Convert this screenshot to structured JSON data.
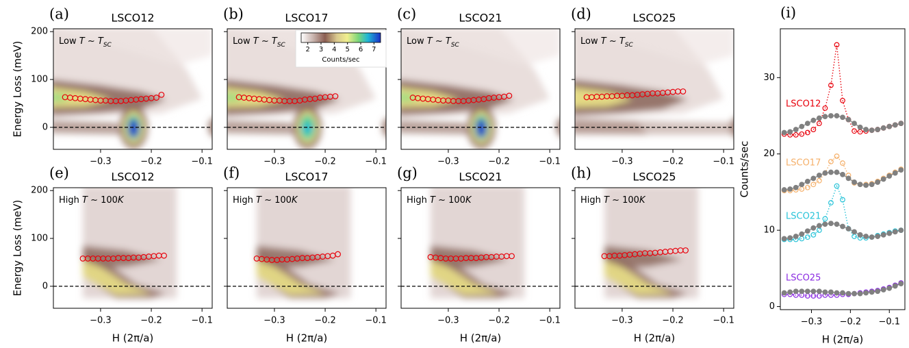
{
  "chart_data": [
    {
      "type": "scatter",
      "panel": "(a)",
      "title": "LSCO12",
      "annotation": [
        "Low ",
        "T",
        " ~ ",
        "T",
        "SC"
      ],
      "ylabel": "Energy Loss (meV)",
      "x": [
        -0.37,
        -0.36,
        -0.35,
        -0.34,
        -0.33,
        -0.32,
        -0.31,
        -0.3,
        -0.29,
        -0.28,
        -0.27,
        -0.26,
        -0.25,
        -0.24,
        -0.23,
        -0.22,
        -0.21,
        -0.2,
        -0.19,
        -0.18
      ],
      "values": [
        63,
        62,
        61,
        60,
        59,
        58,
        57,
        56,
        56,
        55,
        55,
        55,
        56,
        57,
        58,
        59,
        60,
        61,
        62,
        68
      ],
      "color": "#e8000b",
      "xlim": [
        -0.393,
        -0.08
      ],
      "ylim": [
        -46,
        206
      ],
      "xticks": [
        {
          "value": -0.3,
          "label": "−0.3"
        },
        {
          "value": -0.2,
          "label": "−0.2"
        },
        {
          "value": -0.1,
          "label": "−0.1"
        }
      ],
      "yticks": [
        0,
        100,
        200
      ],
      "reference_line": 0
    },
    {
      "type": "scatter",
      "panel": "(b)",
      "title": "LSCO17",
      "annotation": [
        "Low ",
        "T",
        " ~ ",
        "T",
        "SC"
      ],
      "x": [
        -0.37,
        -0.36,
        -0.35,
        -0.34,
        -0.33,
        -0.32,
        -0.31,
        -0.3,
        -0.29,
        -0.28,
        -0.27,
        -0.26,
        -0.25,
        -0.24,
        -0.23,
        -0.22,
        -0.21,
        -0.2,
        -0.19,
        -0.18
      ],
      "values": [
        63,
        62,
        61,
        60,
        59,
        58,
        57,
        56,
        56,
        55,
        55,
        55,
        56,
        58,
        59,
        60,
        62,
        63,
        64,
        65
      ],
      "color": "#e8000b",
      "xlim": [
        -0.393,
        -0.08
      ],
      "ylim": [
        -46,
        206
      ],
      "xticks": [
        {
          "value": -0.3,
          "label": "−0.3"
        },
        {
          "value": -0.2,
          "label": "−0.2"
        },
        {
          "value": -0.1,
          "label": "−0.1"
        }
      ],
      "yticks": [
        0,
        100,
        200
      ],
      "reference_line": 0,
      "colorbar": {
        "label": "Counts/sec",
        "lim": [
          1.5,
          7.5
        ],
        "ticks": [
          2,
          3,
          4,
          5,
          6,
          7
        ]
      }
    },
    {
      "type": "scatter",
      "panel": "(c)",
      "title": "LSCO21",
      "annotation": [
        "Low ",
        "T",
        " ~ ",
        "T",
        "SC"
      ],
      "x": [
        -0.37,
        -0.36,
        -0.35,
        -0.34,
        -0.33,
        -0.32,
        -0.31,
        -0.3,
        -0.29,
        -0.28,
        -0.27,
        -0.26,
        -0.25,
        -0.24,
        -0.23,
        -0.22,
        -0.21,
        -0.2,
        -0.19,
        -0.18
      ],
      "values": [
        62,
        61,
        60,
        59,
        58,
        57,
        56,
        56,
        55,
        55,
        55,
        56,
        57,
        58,
        59,
        61,
        62,
        63,
        64,
        66
      ],
      "color": "#e8000b",
      "xlim": [
        -0.393,
        -0.08
      ],
      "ylim": [
        -46,
        206
      ],
      "xticks": [
        {
          "value": -0.3,
          "label": "−0.3"
        },
        {
          "value": -0.2,
          "label": "−0.2"
        },
        {
          "value": -0.1,
          "label": "−0.1"
        }
      ],
      "yticks": [
        0,
        100,
        200
      ],
      "reference_line": 0
    },
    {
      "type": "scatter",
      "panel": "(d)",
      "title": "LSCO25",
      "annotation": [
        "Low ",
        "T",
        " ~ ",
        "T",
        "SC"
      ],
      "x": [
        -0.37,
        -0.36,
        -0.35,
        -0.34,
        -0.33,
        -0.32,
        -0.31,
        -0.3,
        -0.29,
        -0.28,
        -0.27,
        -0.26,
        -0.25,
        -0.24,
        -0.23,
        -0.22,
        -0.21,
        -0.2,
        -0.19,
        -0.18
      ],
      "values": [
        63,
        63,
        64,
        64,
        65,
        65,
        66,
        66,
        67,
        67,
        68,
        69,
        70,
        71,
        71,
        72,
        73,
        74,
        75,
        75
      ],
      "color": "#e8000b",
      "xlim": [
        -0.393,
        -0.08
      ],
      "ylim": [
        -46,
        206
      ],
      "xticks": [
        {
          "value": -0.3,
          "label": "−0.3"
        },
        {
          "value": -0.2,
          "label": "−0.2"
        },
        {
          "value": -0.1,
          "label": "−0.1"
        }
      ],
      "yticks": [
        0,
        100,
        200
      ],
      "reference_line": 0
    },
    {
      "type": "scatter",
      "panel": "(e)",
      "title": "LSCO12",
      "annotation": [
        "High ",
        "T",
        " ~ 100",
        "K"
      ],
      "ylabel": "Energy Loss (meV)",
      "xlabel": "H (2π/a)",
      "x": [
        -0.335,
        -0.325,
        -0.315,
        -0.305,
        -0.295,
        -0.285,
        -0.275,
        -0.265,
        -0.255,
        -0.245,
        -0.235,
        -0.225,
        -0.215,
        -0.205,
        -0.195,
        -0.185,
        -0.175
      ],
      "values": [
        58,
        58,
        58,
        58,
        58,
        58,
        58,
        59,
        59,
        59,
        60,
        60,
        61,
        62,
        63,
        64,
        64
      ],
      "color": "#e8000b",
      "xlim": [
        -0.393,
        -0.08
      ],
      "ylim": [
        -46,
        206
      ],
      "xticks": [
        {
          "value": -0.3,
          "label": "−0.3"
        },
        {
          "value": -0.2,
          "label": "−0.2"
        },
        {
          "value": -0.1,
          "label": "−0.1"
        }
      ],
      "yticks": [
        0,
        100,
        200
      ],
      "reference_line": 0
    },
    {
      "type": "scatter",
      "panel": "(f)",
      "title": "LSCO17",
      "annotation": [
        "High ",
        "T",
        " ~ 100",
        "K"
      ],
      "xlabel": "H (2π/a)",
      "x": [
        -0.335,
        -0.325,
        -0.315,
        -0.305,
        -0.295,
        -0.285,
        -0.275,
        -0.265,
        -0.255,
        -0.245,
        -0.235,
        -0.225,
        -0.215,
        -0.205,
        -0.195,
        -0.185,
        -0.175
      ],
      "values": [
        58,
        57,
        56,
        55,
        55,
        56,
        56,
        57,
        58,
        59,
        59,
        60,
        61,
        62,
        63,
        64,
        67
      ],
      "color": "#e8000b",
      "xlim": [
        -0.393,
        -0.08
      ],
      "ylim": [
        -46,
        206
      ],
      "xticks": [
        {
          "value": -0.3,
          "label": "−0.3"
        },
        {
          "value": -0.2,
          "label": "−0.2"
        },
        {
          "value": -0.1,
          "label": "−0.1"
        }
      ],
      "yticks": [
        0,
        100,
        200
      ],
      "reference_line": 0
    },
    {
      "type": "scatter",
      "panel": "(g)",
      "title": "LSCO21",
      "annotation": [
        "High ",
        "T",
        " ~ 100",
        "K"
      ],
      "xlabel": "H (2π/a)",
      "x": [
        -0.335,
        -0.325,
        -0.315,
        -0.305,
        -0.295,
        -0.285,
        -0.275,
        -0.265,
        -0.255,
        -0.245,
        -0.235,
        -0.225,
        -0.215,
        -0.205,
        -0.195,
        -0.185,
        -0.175
      ],
      "values": [
        61,
        60,
        59,
        58,
        58,
        58,
        58,
        59,
        59,
        59,
        60,
        61,
        61,
        62,
        62,
        63,
        63
      ],
      "color": "#e8000b",
      "xlim": [
        -0.393,
        -0.08
      ],
      "ylim": [
        -46,
        206
      ],
      "xticks": [
        {
          "value": -0.3,
          "label": "−0.3"
        },
        {
          "value": -0.2,
          "label": "−0.2"
        },
        {
          "value": -0.1,
          "label": "−0.1"
        }
      ],
      "yticks": [
        0,
        100,
        200
      ],
      "reference_line": 0
    },
    {
      "type": "scatter",
      "panel": "(h)",
      "title": "LSCO25",
      "annotation": [
        "High ",
        "T",
        " ~ 100",
        "K"
      ],
      "xlabel": "H (2π/a)",
      "x": [
        -0.335,
        -0.325,
        -0.315,
        -0.305,
        -0.295,
        -0.285,
        -0.275,
        -0.265,
        -0.255,
        -0.245,
        -0.235,
        -0.225,
        -0.215,
        -0.205,
        -0.195,
        -0.185,
        -0.175
      ],
      "values": [
        63,
        63,
        64,
        64,
        65,
        66,
        67,
        68,
        69,
        69,
        70,
        71,
        72,
        73,
        74,
        75,
        75
      ],
      "color": "#e8000b",
      "xlim": [
        -0.393,
        -0.08
      ],
      "ylim": [
        -46,
        206
      ],
      "xticks": [
        {
          "value": -0.3,
          "label": "−0.3"
        },
        {
          "value": -0.2,
          "label": "−0.2"
        },
        {
          "value": -0.1,
          "label": "−0.1"
        }
      ],
      "yticks": [
        0,
        100,
        200
      ],
      "reference_line": 0
    },
    {
      "type": "line",
      "panel": "(i)",
      "ylabel": "Counts/sec",
      "xlabel": "H (2π/a)",
      "x": [
        -0.37,
        -0.355,
        -0.34,
        -0.325,
        -0.31,
        -0.295,
        -0.28,
        -0.265,
        -0.25,
        -0.235,
        -0.22,
        -0.205,
        -0.19,
        -0.175,
        -0.16,
        -0.145,
        -0.13,
        -0.115,
        -0.1,
        -0.085,
        -0.07
      ],
      "series": [
        {
          "name": "LSCO12",
          "color": "#e8000b",
          "values": [
            22.6,
            22.5,
            22.5,
            22.6,
            22.8,
            23.2,
            24,
            26,
            29,
            34.3,
            27,
            24.5,
            23,
            22.9,
            23,
            23.1,
            23.2,
            23.4,
            23.6,
            23.8,
            24.0
          ]
        },
        {
          "color": "#808080",
          "values": [
            22.8,
            22.9,
            23.2,
            23.6,
            24,
            24.4,
            24.7,
            24.9,
            25,
            25,
            24.8,
            24.5,
            24,
            23.5,
            23.2,
            23.1,
            23.2,
            23.4,
            23.6,
            23.8,
            24.0
          ]
        },
        {
          "name": "LSCO17",
          "color": "#f5b06a",
          "values": [
            15.2,
            15.2,
            15.3,
            15.4,
            15.6,
            16,
            16.5,
            17.5,
            19,
            19.7,
            18.8,
            17.2,
            16.2,
            16,
            16,
            16.1,
            16.4,
            16.8,
            17.2,
            17.6,
            18.0
          ]
        },
        {
          "color": "#808080",
          "values": [
            15.3,
            15.4,
            15.6,
            16,
            16.4,
            16.8,
            17.2,
            17.5,
            17.6,
            17.6,
            17.3,
            16.8,
            16.3,
            16,
            15.9,
            16,
            16.3,
            16.7,
            17.1,
            17.5,
            17.9
          ]
        },
        {
          "name": "LSCO21",
          "color": "#27c3d8",
          "values": [
            8.8,
            8.8,
            8.8,
            8.9,
            9.1,
            9.4,
            10,
            11.5,
            13.6,
            15.8,
            14,
            10.2,
            9.2,
            9,
            9,
            9.1,
            9.3,
            9.5,
            9.7,
            9.9,
            10.0
          ]
        },
        {
          "color": "#808080",
          "values": [
            8.9,
            9,
            9.2,
            9.5,
            9.9,
            10.3,
            10.6,
            10.8,
            10.9,
            10.8,
            10.5,
            10.2,
            9.8,
            9.4,
            9.2,
            9.1,
            9.2,
            9.4,
            9.6,
            9.8,
            10.0
          ]
        },
        {
          "name": "LSCO25",
          "color": "#8a2be2",
          "values": [
            1.6,
            1.6,
            1.5,
            1.5,
            1.4,
            1.4,
            1.4,
            1.5,
            1.5,
            1.5,
            1.6,
            1.6,
            1.7,
            1.8,
            1.9,
            2.0,
            2.1,
            2.3,
            2.5,
            2.8,
            3.1
          ]
        },
        {
          "color": "#808080",
          "values": [
            1.8,
            1.9,
            2,
            2,
            2,
            2,
            2,
            1.9,
            1.9,
            1.8,
            1.8,
            1.7,
            1.7,
            1.7,
            1.8,
            1.9,
            2.0,
            2.2,
            2.4,
            2.7,
            3.0
          ]
        }
      ],
      "xlim": [
        -0.38,
        -0.06
      ],
      "ylim": [
        -0.4,
        36.4
      ],
      "xticks": [
        {
          "value": -0.3,
          "label": "−0.3"
        },
        {
          "value": -0.2,
          "label": "−0.2"
        },
        {
          "value": -0.1,
          "label": "−0.1"
        }
      ],
      "yticks": [
        0,
        10,
        20,
        30
      ]
    }
  ]
}
